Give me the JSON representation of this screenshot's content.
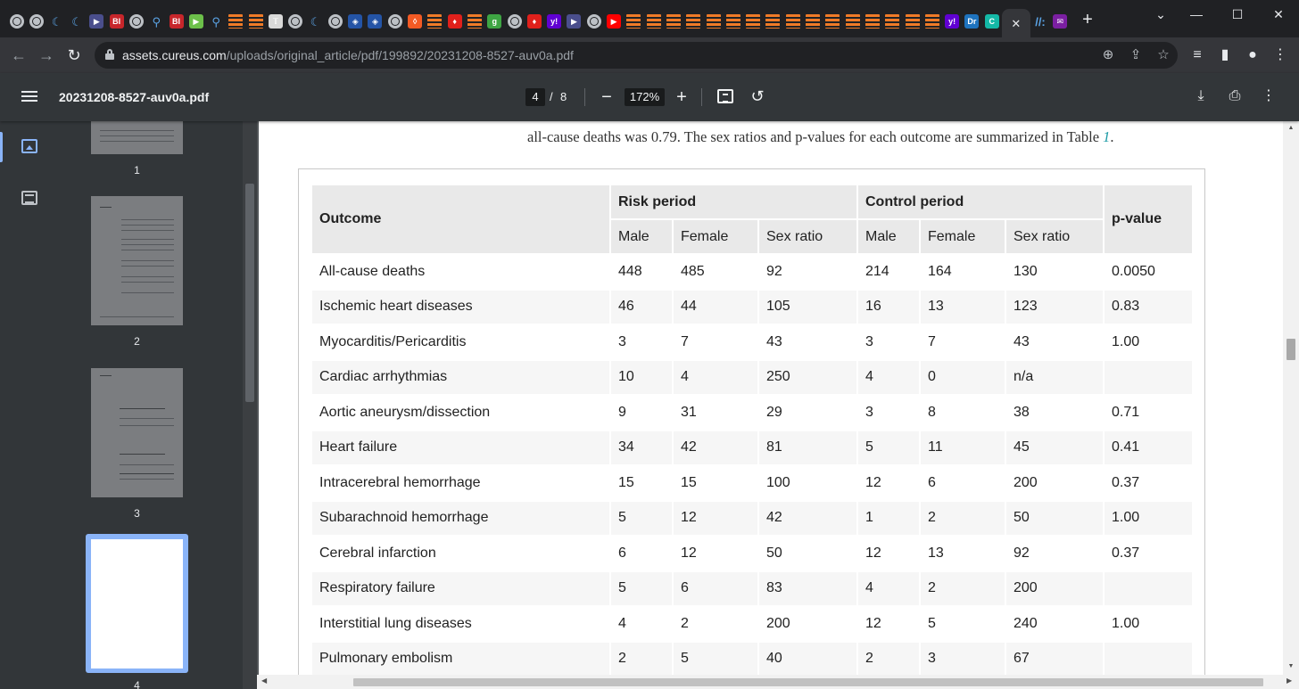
{
  "browser": {
    "tabs": [
      {
        "icon": "globe-icon",
        "kind": "globe",
        "label": ""
      },
      {
        "icon": "globe-icon",
        "kind": "globe",
        "label": ""
      },
      {
        "icon": "shield-icon",
        "kind": "shield",
        "label": "☾"
      },
      {
        "icon": "shield-icon",
        "kind": "shield",
        "label": "☾"
      },
      {
        "icon": "play-icon",
        "kind": "solid",
        "color": "#4a4e8c",
        "label": "▶"
      },
      {
        "icon": "bi-icon",
        "kind": "solid",
        "color": "#c7262b",
        "label": "BI"
      },
      {
        "icon": "globe-icon",
        "kind": "globe",
        "label": ""
      },
      {
        "icon": "search-icon",
        "kind": "shield",
        "label": "⚲"
      },
      {
        "icon": "bi-icon",
        "kind": "solid",
        "color": "#c7262b",
        "label": "BI"
      },
      {
        "icon": "play-circle-icon",
        "kind": "solid",
        "color": "#6cc04a",
        "label": "▶"
      },
      {
        "icon": "search-icon",
        "kind": "shield",
        "label": "⚲"
      },
      {
        "icon": "substack-icon",
        "kind": "stripes",
        "label": ""
      },
      {
        "icon": "substack-icon",
        "kind": "stripes",
        "label": ""
      },
      {
        "icon": "newspaper-icon",
        "kind": "solid",
        "color": "#d9d9d9",
        "label": "𝕋"
      },
      {
        "icon": "globe-icon",
        "kind": "globe",
        "label": ""
      },
      {
        "icon": "shield-icon",
        "kind": "shield",
        "label": "☾"
      },
      {
        "icon": "globe-icon",
        "kind": "globe",
        "label": ""
      },
      {
        "icon": "cube-icon",
        "kind": "solid",
        "color": "#2454a6",
        "label": "◈"
      },
      {
        "icon": "cube-icon",
        "kind": "solid",
        "color": "#2454a6",
        "label": "◈"
      },
      {
        "icon": "globe-icon",
        "kind": "globe",
        "label": ""
      },
      {
        "icon": "brave-icon",
        "kind": "solid",
        "color": "#f25a24",
        "label": "◊"
      },
      {
        "icon": "substack-icon",
        "kind": "stripes",
        "label": ""
      },
      {
        "icon": "pin-icon",
        "kind": "solid",
        "color": "#e0201b",
        "label": "♦"
      },
      {
        "icon": "substack-icon",
        "kind": "stripes",
        "label": ""
      },
      {
        "icon": "g-icon",
        "kind": "solid",
        "color": "#3ea543",
        "label": "g"
      },
      {
        "icon": "globe-icon",
        "kind": "globe",
        "label": ""
      },
      {
        "icon": "pin-icon",
        "kind": "solid",
        "color": "#e0201b",
        "label": "♦"
      },
      {
        "icon": "yahoo-icon",
        "kind": "solid",
        "color": "#6001d2",
        "label": "y!"
      },
      {
        "icon": "play-icon",
        "kind": "solid",
        "color": "#4a4e8c",
        "label": "▶"
      },
      {
        "icon": "globe-icon",
        "kind": "globe",
        "label": ""
      },
      {
        "icon": "youtube-icon",
        "kind": "solid",
        "color": "#ff0000",
        "label": "▶"
      },
      {
        "icon": "substack-icon",
        "kind": "stripes",
        "label": ""
      },
      {
        "icon": "substack-icon",
        "kind": "stripes",
        "label": ""
      },
      {
        "icon": "substack-icon",
        "kind": "stripes",
        "label": ""
      },
      {
        "icon": "substack-icon",
        "kind": "stripes",
        "label": ""
      },
      {
        "icon": "substack-icon",
        "kind": "stripes",
        "label": ""
      },
      {
        "icon": "substack-icon",
        "kind": "stripes",
        "label": ""
      },
      {
        "icon": "substack-icon",
        "kind": "stripes",
        "label": ""
      },
      {
        "icon": "substack-icon",
        "kind": "stripes",
        "label": ""
      },
      {
        "icon": "substack-icon",
        "kind": "stripes",
        "label": ""
      },
      {
        "icon": "substack-icon",
        "kind": "stripes",
        "label": ""
      },
      {
        "icon": "substack-icon",
        "kind": "stripes",
        "label": ""
      },
      {
        "icon": "substack-icon",
        "kind": "stripes",
        "label": ""
      },
      {
        "icon": "substack-icon",
        "kind": "stripes",
        "label": ""
      },
      {
        "icon": "substack-icon",
        "kind": "stripes",
        "label": ""
      },
      {
        "icon": "substack-icon",
        "kind": "stripes",
        "label": ""
      },
      {
        "icon": "substack-icon",
        "kind": "stripes",
        "label": ""
      },
      {
        "icon": "yahoo-icon",
        "kind": "solid",
        "color": "#6001d2",
        "label": "y!"
      },
      {
        "icon": "dr-icon",
        "kind": "solid",
        "color": "#1e73be",
        "label": "Dr"
      },
      {
        "icon": "c-icon",
        "kind": "solid",
        "color": "#14b8a6",
        "label": "C"
      }
    ],
    "active_tab_close": "✕",
    "tabs_after": [
      {
        "icon": "slash-icon",
        "kind": "shield",
        "label": "//:"
      },
      {
        "icon": "mail-icon",
        "kind": "solid",
        "color": "#7b1fa2",
        "label": "✉"
      }
    ],
    "new_tab": "+",
    "win_buttons": {
      "chevron": "⌄",
      "minimize": "—",
      "maximize": "☐",
      "close": "✕"
    },
    "url_host": "assets.cureus.com",
    "url_path": "/uploads/original_article/pdf/199892/20231208-8527-auv0a.pdf"
  },
  "pdf": {
    "title": "20231208-8527-auv0a.pdf",
    "current_page": "4",
    "page_sep": "/",
    "total_pages": "8",
    "zoom": "172%",
    "zoom_out": "−",
    "zoom_in": "+"
  },
  "sidebar": {
    "thumbnails": [
      {
        "num": "1"
      },
      {
        "num": "2"
      },
      {
        "num": "3"
      },
      {
        "num": "4"
      }
    ]
  },
  "document": {
    "intro_line": "all-cause deaths was 0.79. The sex ratios and p-values for each outcome are summarized in Table ",
    "intro_ref": "1",
    "intro_end": ".",
    "table": {
      "outcome_header": "Outcome",
      "risk_header": "Risk period",
      "control_header": "Control period",
      "pvalue_header": "p-value",
      "sub_headers": [
        "Male",
        "Female",
        "Sex ratio",
        "Male",
        "Female",
        "Sex ratio"
      ],
      "rows": [
        [
          "All-cause deaths",
          "448",
          "485",
          "92",
          "214",
          "164",
          "130",
          "0.0050"
        ],
        [
          "Ischemic heart diseases",
          "46",
          "44",
          "105",
          "16",
          "13",
          "123",
          "0.83"
        ],
        [
          "Myocarditis/Pericarditis",
          "3",
          "7",
          "43",
          "3",
          "7",
          "43",
          "1.00"
        ],
        [
          "Cardiac arrhythmias",
          "10",
          "4",
          "250",
          "4",
          "0",
          "n/a",
          ""
        ],
        [
          "Aortic aneurysm/dissection",
          "9",
          "31",
          "29",
          "3",
          "8",
          "38",
          "0.71"
        ],
        [
          "Heart failure",
          "34",
          "42",
          "81",
          "5",
          "11",
          "45",
          "0.41"
        ],
        [
          "Intracerebral hemorrhage",
          "15",
          "15",
          "100",
          "12",
          "6",
          "200",
          "0.37"
        ],
        [
          "Subarachnoid hemorrhage",
          "5",
          "12",
          "42",
          "1",
          "2",
          "50",
          "1.00"
        ],
        [
          "Cerebral infarction",
          "6",
          "12",
          "50",
          "12",
          "13",
          "92",
          "0.37"
        ],
        [
          "Respiratory failure",
          "5",
          "6",
          "83",
          "4",
          "2",
          "200",
          ""
        ],
        [
          "Interstitial lung diseases",
          "4",
          "2",
          "200",
          "12",
          "5",
          "240",
          "1.00"
        ],
        [
          "Pulmonary embolism",
          "2",
          "5",
          "40",
          "2",
          "3",
          "67",
          ""
        ]
      ]
    }
  }
}
